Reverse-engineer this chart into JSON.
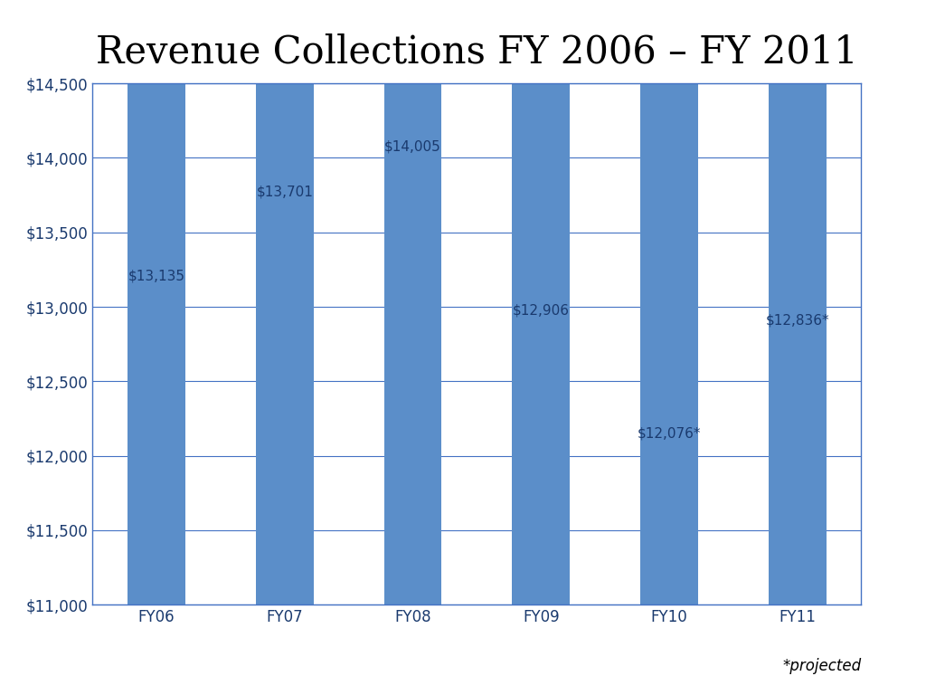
{
  "title": "Revenue Collections FY 2006 – FY 2011",
  "categories": [
    "FY06",
    "FY07",
    "FY08",
    "FY09",
    "FY10",
    "FY11"
  ],
  "values": [
    13135,
    13701,
    14005,
    12906,
    12076,
    12836
  ],
  "labels": [
    "$13,135",
    "$13,701",
    "$14,005",
    "$12,906",
    "$12,076*",
    "$12,836*"
  ],
  "bar_color": "#5b8ec9",
  "ylim": [
    11000,
    14500
  ],
  "yticks": [
    11000,
    11500,
    12000,
    12500,
    13000,
    13500,
    14000,
    14500
  ],
  "ytick_labels": [
    "$11,000",
    "$11,500",
    "$12,000",
    "$12,500",
    "$13,000",
    "$13,500",
    "$14,000",
    "$14,500"
  ],
  "title_fontsize": 30,
  "tick_fontsize": 12,
  "label_fontsize": 11,
  "projected_note": "*projected",
  "background_color": "#ffffff",
  "grid_color": "#4472c4",
  "spine_color": "#4472c4",
  "bar_width": 0.45
}
